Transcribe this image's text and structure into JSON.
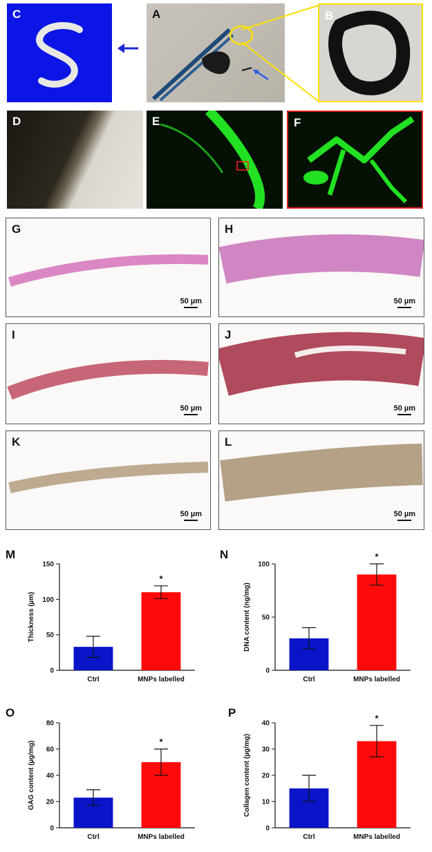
{
  "panels": {
    "A": "A",
    "B": "B",
    "C": "C",
    "D": "D",
    "E": "E",
    "F": "F",
    "G": "G",
    "H": "H",
    "I": "I",
    "J": "J",
    "K": "K",
    "L": "L",
    "M": "M",
    "N": "N",
    "O": "O",
    "P": "P"
  },
  "scale_bar_label": "50 µm",
  "colors": {
    "ctrl": "#0a14c8",
    "mnps": "#ff0a0a",
    "blue_bg": "#0b15e6",
    "green": "#22e022",
    "frame_yellow": "#ffe000"
  },
  "chart_data": [
    {
      "type": "bar",
      "panel": "M",
      "categories": [
        "Ctrl",
        "MNPs labelled"
      ],
      "values": [
        33,
        110
      ],
      "errors": [
        15,
        9
      ],
      "significance": [
        "",
        "*"
      ],
      "ylabel": "Thickness (µm)",
      "ylim": [
        0,
        150
      ],
      "yticks": [
        0,
        50,
        100,
        150
      ]
    },
    {
      "type": "bar",
      "panel": "N",
      "categories": [
        "Ctrl",
        "MNPs labelled"
      ],
      "values": [
        30,
        90
      ],
      "errors": [
        10,
        10
      ],
      "significance": [
        "",
        "*"
      ],
      "ylabel": "DNA content (ng/mg)",
      "ylim": [
        0,
        100
      ],
      "yticks": [
        0,
        50,
        100
      ]
    },
    {
      "type": "bar",
      "panel": "O",
      "categories": [
        "Ctrl",
        "MNPs labelled"
      ],
      "values": [
        23,
        50
      ],
      "errors": [
        6,
        10
      ],
      "significance": [
        "",
        "*"
      ],
      "ylabel": "GAG content (µg/mg)",
      "ylim": [
        0,
        80
      ],
      "yticks": [
        0,
        20,
        40,
        60,
        80
      ]
    },
    {
      "type": "bar",
      "panel": "P",
      "categories": [
        "Ctrl",
        "MNPs labelled"
      ],
      "values": [
        15,
        33
      ],
      "errors": [
        5,
        6
      ],
      "significance": [
        "",
        "*"
      ],
      "ylabel": "Collagen content (µg/mg)",
      "ylim": [
        0,
        40
      ],
      "yticks": [
        0,
        10,
        20,
        30,
        40
      ]
    }
  ]
}
